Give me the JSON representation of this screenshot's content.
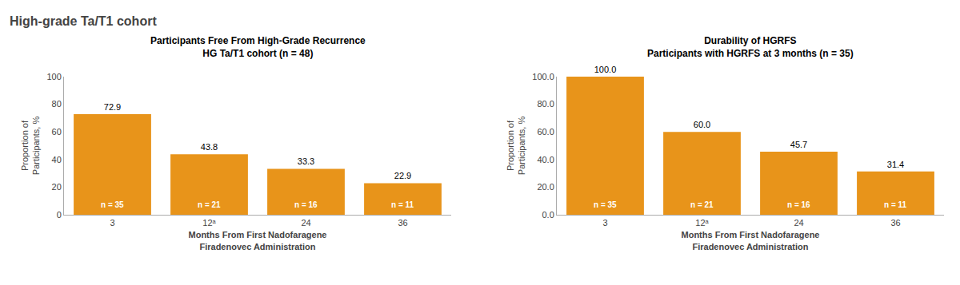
{
  "title": "High-grade Ta/T1 cohort",
  "chart_data": [
    {
      "type": "bar",
      "title": "Participants Free From High-Grade Recurrence",
      "subtitle": "HG Ta/T1 cohort (n = 48)",
      "categories": [
        "3",
        "12ᵃ",
        "24",
        "36"
      ],
      "values": [
        72.9,
        43.8,
        33.3,
        22.9
      ],
      "annotations": [
        "n = 35",
        "n = 21",
        "n = 16",
        "n = 11"
      ],
      "color": "#E8941A",
      "xlabel": "Months From First Nadofaragene\nFiradenovec Administration",
      "ylabel": "Proportion of\nParticipants, %",
      "ylim": [
        0,
        100
      ],
      "yticks": [
        0,
        20,
        40,
        60,
        80,
        100
      ],
      "grid": false,
      "data_labels": true
    },
    {
      "type": "bar",
      "title": "Durability of HGRFS",
      "subtitle": "Participants with HGRFS at 3 months (n = 35)",
      "categories": [
        "3",
        "12ᵃ",
        "24",
        "36"
      ],
      "values": [
        100.0,
        60.0,
        45.7,
        31.4
      ],
      "value_labels": [
        "100.0",
        "60.0",
        "45.7",
        "31.4"
      ],
      "annotations": [
        "n = 35",
        "n = 21",
        "n = 16",
        "n = 11"
      ],
      "color": "#E8941A",
      "xlabel": "Months From First Nadofaragene\nFiradenovec Administration",
      "ylabel": "Proportion of\nParticipants, %",
      "ylim": [
        0,
        100
      ],
      "yticks": [
        {
          "value": 0,
          "label": "0.0"
        },
        {
          "value": 20,
          "label": "20.0"
        },
        {
          "value": 40,
          "label": "40.0"
        },
        {
          "value": 60,
          "label": "60.0"
        },
        {
          "value": 80,
          "label": "80.0"
        },
        {
          "value": 100,
          "label": "100.0"
        }
      ],
      "grid": false,
      "data_labels": true
    }
  ]
}
